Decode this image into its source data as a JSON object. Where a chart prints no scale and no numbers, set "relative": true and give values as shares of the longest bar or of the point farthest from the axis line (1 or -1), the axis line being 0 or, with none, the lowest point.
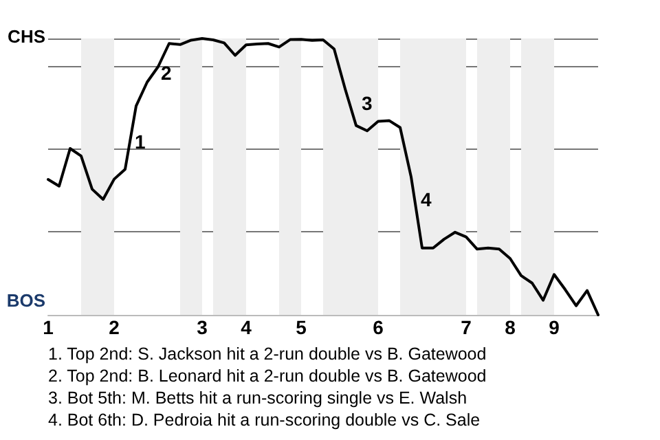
{
  "chart_data": {
    "type": "line",
    "relative": true,
    "categories": [
      "1",
      null,
      null,
      null,
      null,
      null,
      "2",
      null,
      null,
      null,
      null,
      null,
      null,
      null,
      "3",
      null,
      null,
      null,
      "4",
      null,
      null,
      null,
      null,
      "5",
      null,
      null,
      null,
      null,
      null,
      null,
      "6",
      null,
      null,
      null,
      null,
      null,
      null,
      null,
      "7",
      null,
      null,
      null,
      "8",
      null,
      null,
      null,
      "9",
      null,
      null,
      null,
      null
    ],
    "grid": "y",
    "marker": "none",
    "line_style": "solid",
    "series": [
      {
        "color": "#000000",
        "values": [
          0.49,
          0.466,
          0.602,
          0.575,
          0.455,
          0.418,
          0.491,
          0.527,
          0.756,
          0.842,
          0.898,
          0.982,
          0.978,
          0.994,
          1,
          0.995,
          0.984,
          0.939,
          0.977,
          0.98,
          0.982,
          0.969,
          0.996,
          0.997,
          0.993,
          0.995,
          0.962,
          0.818,
          0.685,
          0.666,
          0.7,
          0.703,
          0.678,
          0.499,
          0.242,
          0.242,
          0.274,
          0.299,
          0.282,
          0.238,
          0.242,
          0.238,
          0.204,
          0.142,
          0.115,
          0.053,
          0.146,
          0.092,
          0.033,
          0.088,
          0
        ]
      }
    ],
    "annotations": [
      "CHS",
      "BOS",
      "1",
      "2",
      "3",
      "4",
      "1. Top 2nd: S. Jackson hit a 2-run double vs B. Gatewood",
      "2. Top 2nd: B. Leonard hit a 2-run double vs B. Gatewood",
      "3. Bot 5th: M. Betts hit a run-scoring single vs E. Walsh",
      "4. Bot 6th: D. Pedroia hit a run-scoring double vs C. Sale"
    ]
  }
}
